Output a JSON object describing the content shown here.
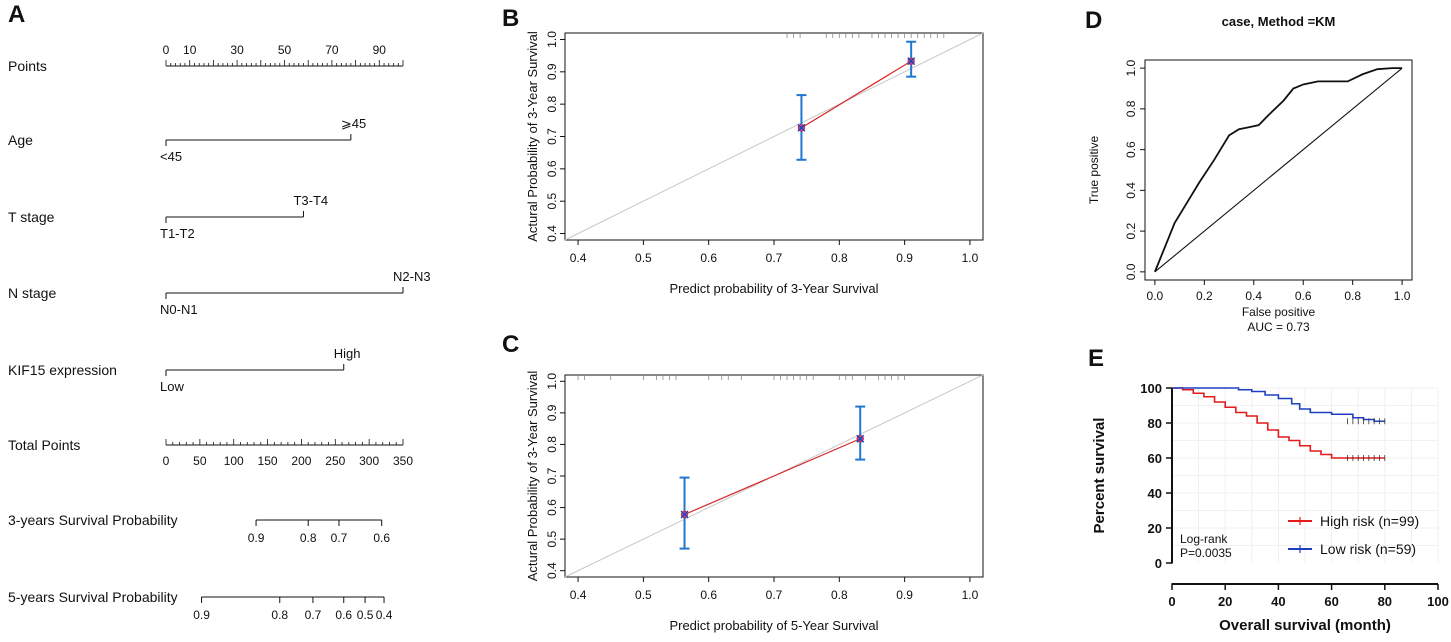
{
  "panel_labels": [
    "A",
    "B",
    "C",
    "D",
    "E"
  ],
  "chart_data": [
    {
      "panel": "A",
      "type": "table",
      "title": "Nomogram",
      "points_ticks": [
        "0",
        "10",
        "30",
        "50",
        "70",
        "90"
      ],
      "total_points_ticks": [
        "0",
        "50",
        "100",
        "150",
        "200",
        "250",
        "300",
        "350"
      ],
      "rows": [
        {
          "label": "Points"
        },
        {
          "label": "Age",
          "low_label": "<45",
          "high_label": "⩾45",
          "points": 78
        },
        {
          "label": "T stage",
          "low_label": "T1-T2",
          "high_label": "T3-T4",
          "points": 58
        },
        {
          "label": "N stage",
          "low_label": "N0-N1",
          "high_label": "N2-N3",
          "points": 100
        },
        {
          "label": "KIF15 expression",
          "low_label": "Low",
          "high_label": "High",
          "points": 75
        },
        {
          "label": "Total Points"
        }
      ],
      "survival_scales": [
        {
          "label": "3-years Survival Probability",
          "ticks": [
            "0.9",
            "0.8",
            "0.7",
            "0.6"
          ],
          "tick_points": [
            38,
            60,
            73,
            91
          ],
          "bar_points": [
            38,
            91
          ]
        },
        {
          "label": "5-years Survival Probability",
          "ticks": [
            "0.9",
            "0.8",
            "0.7",
            "0.6",
            "0.5",
            "0.4"
          ],
          "tick_points": [
            15,
            48,
            62,
            75,
            84,
            92
          ],
          "bar_points": [
            15,
            92
          ]
        }
      ]
    },
    {
      "panel": "B",
      "type": "scatter",
      "title": "",
      "xlabel": "Predict probability of 3-Year Survival",
      "ylabel": "Actural Probability of 3-Year Survival",
      "xlim": [
        0.38,
        1.02
      ],
      "ylim": [
        0.38,
        1.02
      ],
      "xticks": [
        "0.4",
        "0.5",
        "0.6",
        "0.7",
        "0.8",
        "0.9",
        "1.0"
      ],
      "yticks": [
        "0.4",
        "0.5",
        "0.6",
        "0.7",
        "0.8",
        "0.9",
        "1.0"
      ],
      "points": [
        {
          "x": 0.742,
          "y": 0.727,
          "lower": 0.628,
          "upper": 0.828
        },
        {
          "x": 0.91,
          "y": 0.933,
          "lower": 0.885,
          "upper": 0.993
        }
      ],
      "rug_x": [
        0.72,
        0.73,
        0.74,
        0.78,
        0.79,
        0.8,
        0.81,
        0.82,
        0.83,
        0.85,
        0.86,
        0.87,
        0.88,
        0.89,
        0.9,
        0.91,
        0.92,
        0.93,
        0.94,
        0.95,
        0.96
      ]
    },
    {
      "panel": "C",
      "type": "scatter",
      "title": "",
      "xlabel": "Predict probability of 5-Year Survival",
      "ylabel": "Actural Probability of 3-Year Survival",
      "xlim": [
        0.38,
        1.02
      ],
      "ylim": [
        0.38,
        1.02
      ],
      "xticks": [
        "0.4",
        "0.5",
        "0.6",
        "0.7",
        "0.8",
        "0.9",
        "1.0"
      ],
      "yticks": [
        "0.4",
        "0.5",
        "0.6",
        "0.7",
        "0.8",
        "0.9",
        "1.0"
      ],
      "points": [
        {
          "x": 0.563,
          "y": 0.578,
          "lower": 0.47,
          "upper": 0.695
        },
        {
          "x": 0.832,
          "y": 0.818,
          "lower": 0.752,
          "upper": 0.92
        }
      ],
      "rug_x": [
        0.4,
        0.41,
        0.45,
        0.5,
        0.52,
        0.53,
        0.54,
        0.55,
        0.6,
        0.62,
        0.63,
        0.65,
        0.7,
        0.71,
        0.72,
        0.73,
        0.74,
        0.75,
        0.76,
        0.8,
        0.81,
        0.82,
        0.84,
        0.86,
        0.87,
        0.88,
        0.89,
        0.9
      ]
    },
    {
      "panel": "D",
      "type": "line",
      "title": "case, Method =KM",
      "xlabel": "False positive",
      "ylabel": "True positive",
      "annotation": "AUC =  0.73",
      "xlim": [
        -0.04,
        1.04
      ],
      "ylim": [
        -0.04,
        1.04
      ],
      "xticks": [
        "0.0",
        "0.2",
        "0.4",
        "0.6",
        "0.8",
        "1.0"
      ],
      "yticks": [
        "0.0",
        "0.2",
        "0.4",
        "0.6",
        "0.8",
        "1.0"
      ],
      "series": [
        {
          "name": "ROC",
          "x": [
            0.0,
            0.02,
            0.05,
            0.08,
            0.12,
            0.18,
            0.24,
            0.3,
            0.34,
            0.38,
            0.42,
            0.46,
            0.52,
            0.56,
            0.6,
            0.66,
            0.72,
            0.78,
            0.84,
            0.9,
            0.96,
            1.0
          ],
          "y": [
            0.0,
            0.06,
            0.15,
            0.24,
            0.32,
            0.44,
            0.55,
            0.67,
            0.7,
            0.71,
            0.72,
            0.77,
            0.84,
            0.9,
            0.92,
            0.935,
            0.935,
            0.935,
            0.97,
            0.995,
            1.0,
            1.0
          ]
        },
        {
          "name": "Reference",
          "x": [
            0,
            1
          ],
          "y": [
            0,
            1
          ]
        }
      ]
    },
    {
      "panel": "E",
      "type": "line",
      "title": "",
      "xlabel": "Overall survival (month)",
      "ylabel": "Percent survival",
      "annotation": [
        "Log-rank",
        "P=0.0035"
      ],
      "xlim": [
        0,
        100
      ],
      "ylim": [
        0,
        100
      ],
      "xticks": [
        "0",
        "20",
        "40",
        "60",
        "80",
        "100"
      ],
      "yticks": [
        "0",
        "20",
        "40",
        "60",
        "80",
        "100"
      ],
      "series": [
        {
          "name": "High risk (n=99)",
          "color": "#e41a1c",
          "x": [
            0,
            4,
            8,
            12,
            16,
            20,
            24,
            28,
            32,
            36,
            40,
            44,
            48,
            52,
            56,
            60,
            64,
            68,
            72,
            76,
            80
          ],
          "y": [
            100,
            99,
            97,
            95,
            92,
            89,
            86,
            84,
            80,
            76,
            72,
            70,
            67,
            64,
            62,
            60,
            60,
            60,
            60,
            60,
            60
          ]
        },
        {
          "name": "Low risk (n=59)",
          "color": "#1f3fbf",
          "x": [
            0,
            10,
            20,
            25,
            30,
            35,
            40,
            45,
            48,
            52,
            56,
            60,
            64,
            68,
            72,
            76,
            80
          ],
          "y": [
            100,
            100,
            100,
            99,
            98,
            96,
            94,
            91,
            88,
            86,
            86,
            85,
            85,
            83,
            82,
            81,
            81
          ]
        }
      ]
    }
  ]
}
